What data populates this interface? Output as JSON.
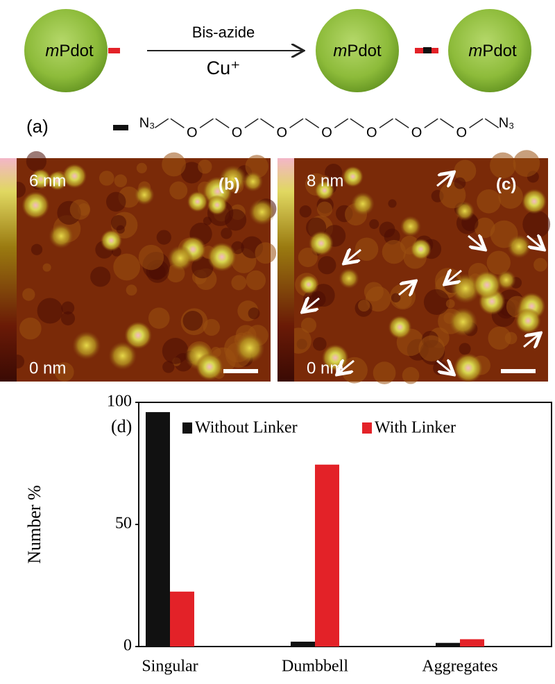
{
  "scheme": {
    "particle": {
      "prefix": "m",
      "name": "Pdot"
    },
    "reagent": "Bis-azide",
    "catalyst": "Cu⁺"
  },
  "linker": {
    "label": "(a)",
    "atoms": [
      "N₃",
      "O",
      "O",
      "O",
      "O",
      "O",
      "O",
      "O",
      "N₃"
    ]
  },
  "afm": [
    {
      "label": "(b)",
      "max": "6 nm",
      "min": "0 nm"
    },
    {
      "label": "(c)",
      "max": "8 nm",
      "min": "0 nm"
    }
  ],
  "chart_data": {
    "type": "bar",
    "label": "(d)",
    "y_label": "Number %",
    "categories": [
      "Singular",
      "Dumbbell",
      "Aggregates"
    ],
    "series": [
      {
        "name": "Without Linker",
        "color": "#111111",
        "values": [
          96,
          2,
          1.5
        ]
      },
      {
        "name": "With Linker",
        "color": "#e32228",
        "values": [
          22.5,
          74.5,
          3
        ]
      }
    ],
    "ylim": [
      0,
      100
    ],
    "yticks": [
      0,
      50,
      100
    ],
    "grid": false
  }
}
